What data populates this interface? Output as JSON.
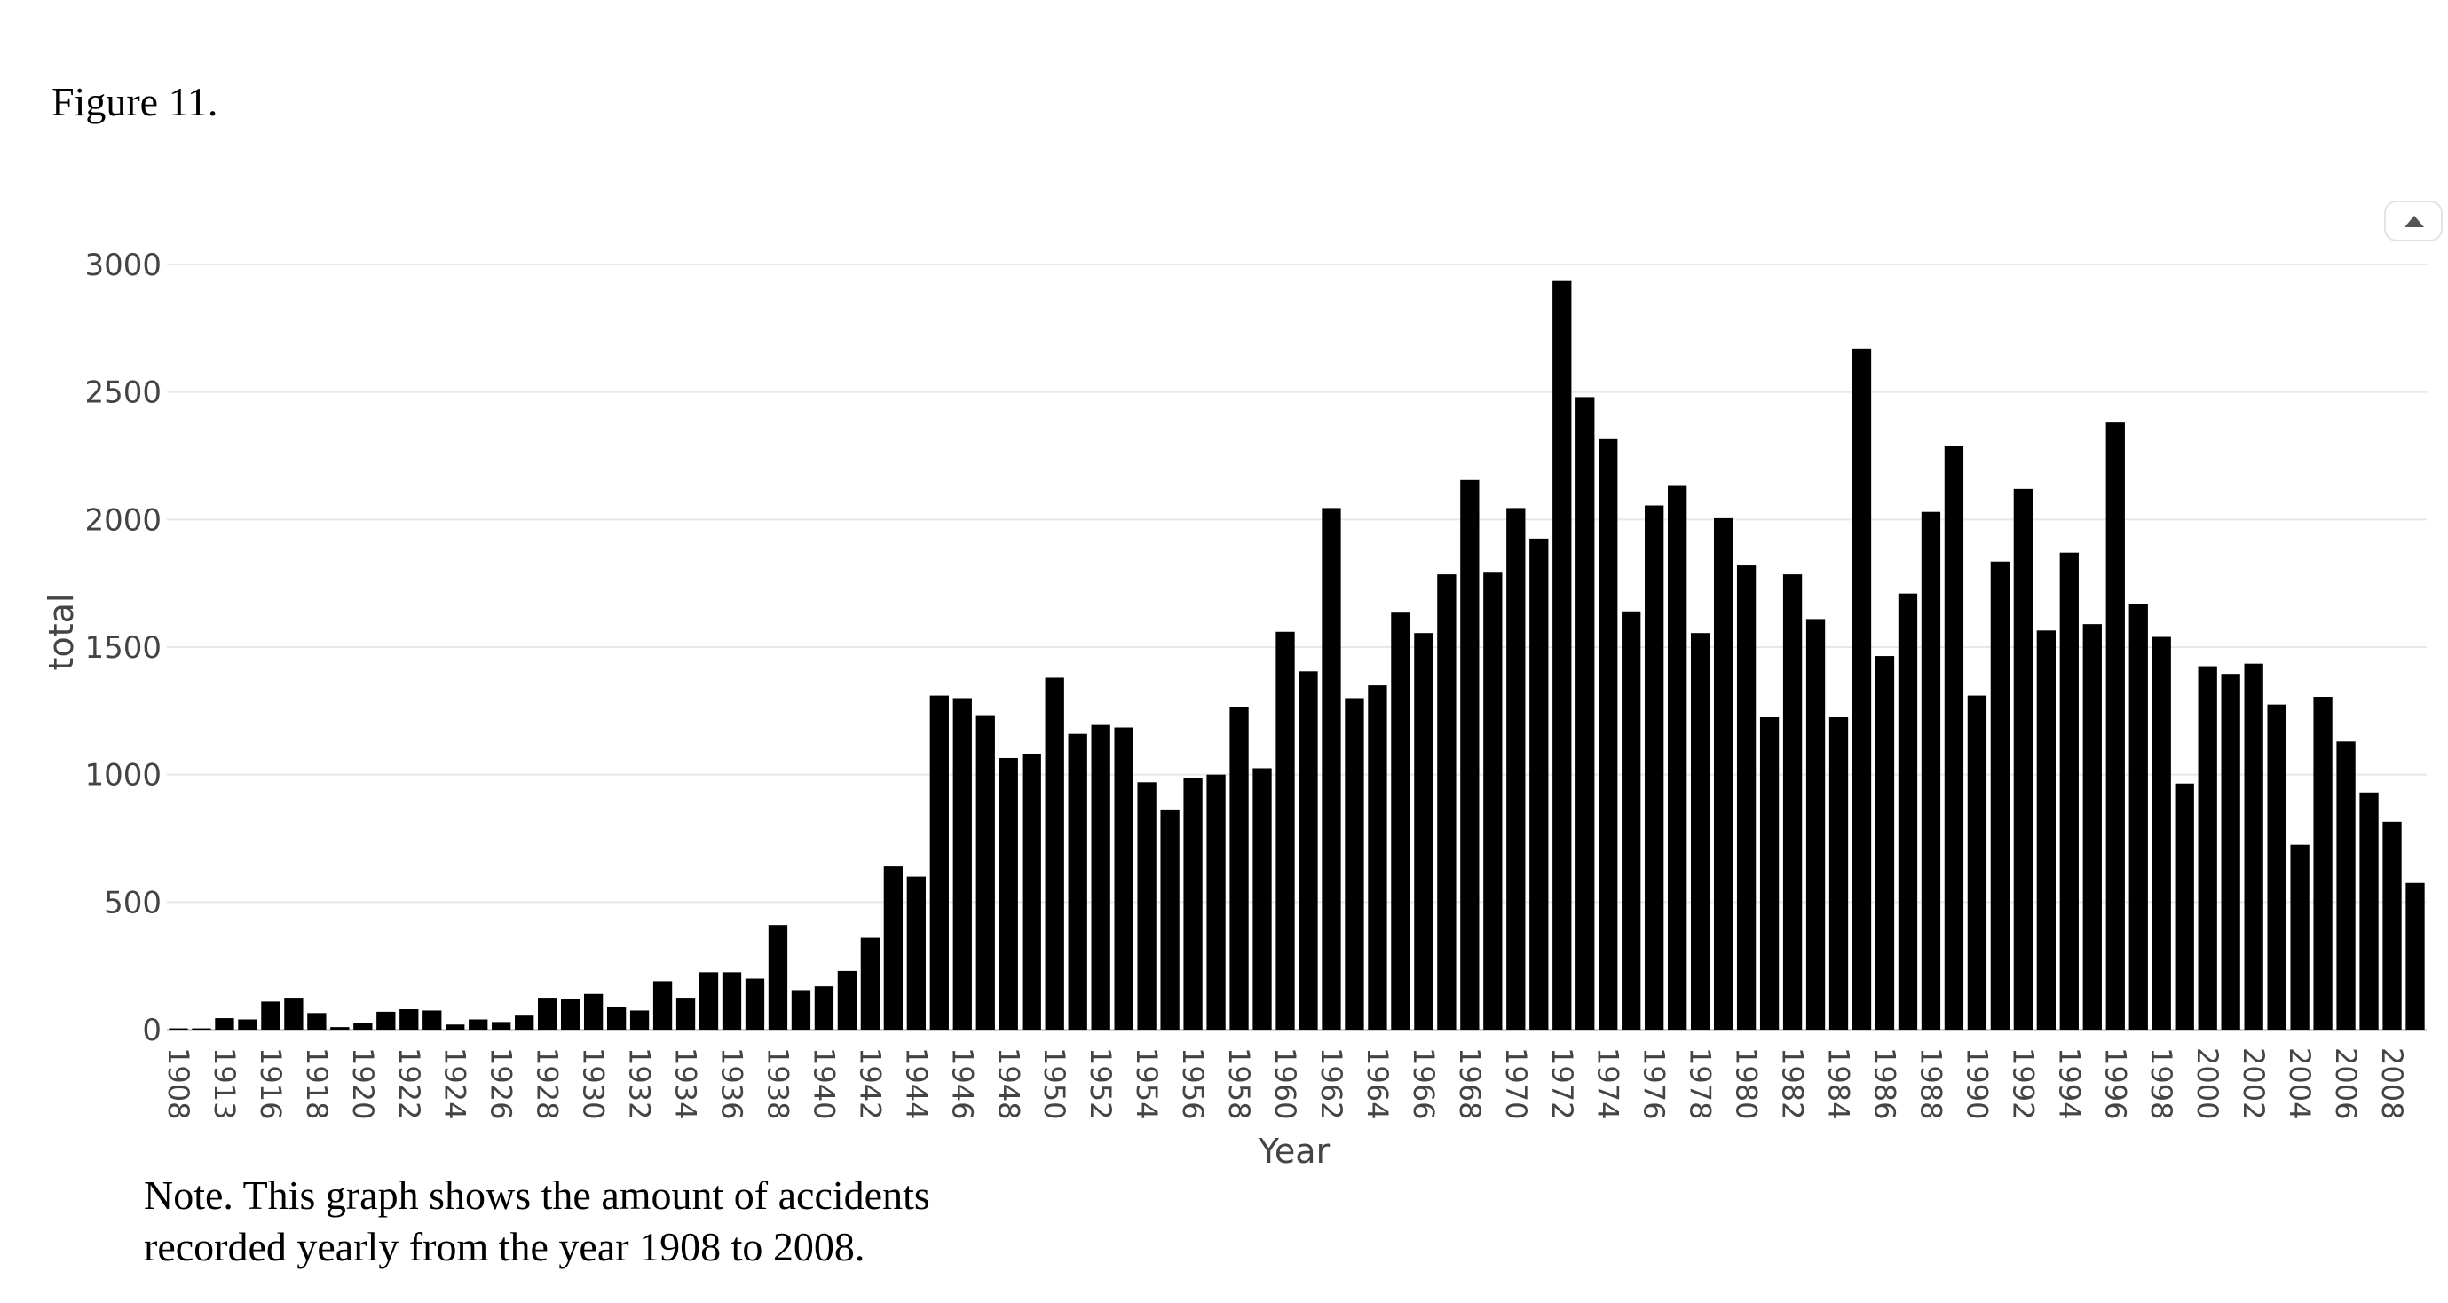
{
  "figure_label": "Figure 11.",
  "note": {
    "line1": "Note. This graph shows the amount of accidents",
    "line2": "recorded yearly from the year 1908 to 2008."
  },
  "modebar": {
    "icon": "collapse-up-icon"
  },
  "colors": {
    "bar": "#000000",
    "grid": "#e8e8e8",
    "axis_text": "#444444"
  },
  "chart_data": {
    "type": "bar",
    "xlabel": "Year",
    "ylabel": "total",
    "ylim": [
      0,
      3000
    ],
    "yticks": [
      0,
      500,
      1000,
      1500,
      2000,
      2500,
      3000
    ],
    "grid": true,
    "xtick_labels": [
      "1908",
      "1913",
      "1916",
      "1918",
      "1920",
      "1922",
      "1924",
      "1926",
      "1928",
      "1930",
      "1932",
      "1934",
      "1936",
      "1938",
      "1940",
      "1942",
      "1944",
      "1946",
      "1948",
      "1950",
      "1952",
      "1954",
      "1956",
      "1958",
      "1960",
      "1962",
      "1964",
      "1966",
      "1968",
      "1970",
      "1972",
      "1974",
      "1976",
      "1978",
      "1980",
      "1982",
      "1984",
      "1986",
      "1988",
      "1990",
      "1992",
      "1994",
      "1996",
      "1998",
      "2000",
      "2002",
      "2004",
      "2006",
      "2008"
    ],
    "categories": [
      "1908",
      "1912",
      "1913",
      "1915",
      "1916",
      "1917",
      "1918",
      "1919",
      "1920",
      "1921",
      "1922",
      "1923",
      "1924",
      "1925",
      "1926",
      "1927",
      "1928",
      "1929",
      "1930",
      "1931",
      "1932",
      "1933",
      "1934",
      "1935",
      "1936",
      "1937",
      "1938",
      "1939",
      "1940",
      "1941",
      "1942",
      "1943",
      "1944",
      "1945",
      "1946",
      "1947",
      "1948",
      "1949",
      "1950",
      "1951",
      "1952",
      "1953",
      "1954",
      "1955",
      "1956",
      "1957",
      "1958",
      "1959",
      "1960",
      "1961",
      "1962",
      "1963",
      "1964",
      "1965",
      "1966",
      "1967",
      "1968",
      "1969",
      "1970",
      "1971",
      "1972",
      "1973",
      "1974",
      "1975",
      "1976",
      "1977",
      "1978",
      "1979",
      "1980",
      "1981",
      "1982",
      "1983",
      "1984",
      "1985",
      "1986",
      "1987",
      "1988",
      "1989",
      "1990",
      "1991",
      "1992",
      "1993",
      "1994",
      "1995",
      "1996",
      "1997",
      "1998",
      "1999",
      "2000",
      "2001",
      "2002",
      "2003",
      "2004",
      "2005",
      "2006",
      "2007",
      "2008",
      "2009"
    ],
    "values": [
      5,
      5,
      45,
      40,
      110,
      125,
      65,
      10,
      25,
      70,
      80,
      75,
      20,
      40,
      30,
      55,
      125,
      120,
      140,
      90,
      75,
      190,
      125,
      225,
      225,
      200,
      410,
      155,
      170,
      230,
      360,
      640,
      600,
      1310,
      1300,
      1230,
      1065,
      1080,
      1380,
      1160,
      1195,
      1185,
      970,
      860,
      985,
      1000,
      1265,
      1025,
      1560,
      1405,
      2045,
      1300,
      1350,
      1635,
      1555,
      1785,
      2155,
      1795,
      2045,
      1925,
      2935,
      2480,
      2315,
      1640,
      2055,
      2135,
      1555,
      2005,
      1820,
      1225,
      1785,
      1610,
      1225,
      2670,
      1465,
      1710,
      2030,
      2290,
      1310,
      1835,
      2120,
      1565,
      1870,
      1590,
      2380,
      1670,
      1540,
      965,
      1425,
      1395,
      1435,
      1275,
      725,
      1305,
      1130,
      930,
      815,
      575
    ]
  }
}
